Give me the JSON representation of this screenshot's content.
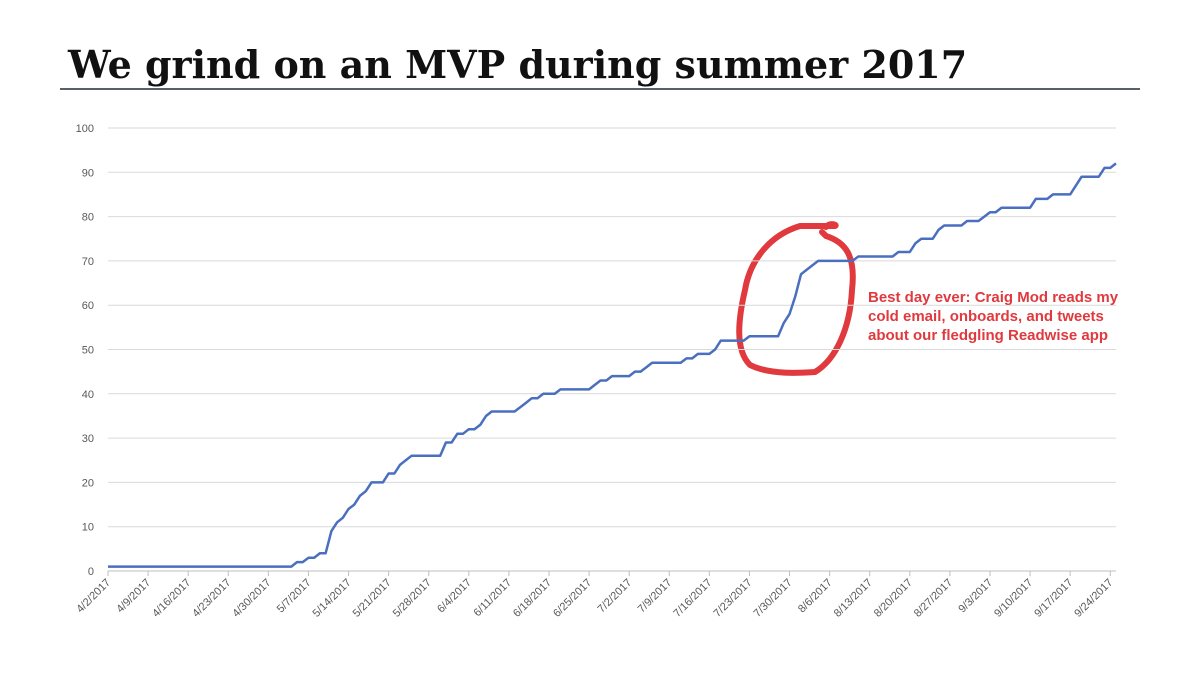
{
  "chart_data": {
    "type": "line",
    "title": "We grind on an MVP during summer 2017",
    "annotation": [
      "Best day ever: Craig Mod reads my",
      "cold email, onboards, and tweets",
      "about our fledgling Readwise app"
    ],
    "annotation_color": "#e0393e",
    "x": [
      "4/2/2017",
      "5/4/2017",
      "5/5/2017",
      "5/6/2017",
      "5/7/2017",
      "5/8/2017",
      "5/9/2017",
      "5/10/2017",
      "5/11/2017",
      "5/12/2017",
      "5/13/2017",
      "5/14/2017",
      "5/15/2017",
      "5/16/2017",
      "5/17/2017",
      "5/18/2017",
      "5/20/2017",
      "5/21/2017",
      "5/22/2017",
      "5/23/2017",
      "5/24/2017",
      "5/25/2017",
      "5/30/2017",
      "5/31/2017",
      "6/1/2017",
      "6/2/2017",
      "6/3/2017",
      "6/4/2017",
      "6/5/2017",
      "6/6/2017",
      "6/7/2017",
      "6/8/2017",
      "6/12/2017",
      "6/13/2017",
      "6/14/2017",
      "6/15/2017",
      "6/16/2017",
      "6/17/2017",
      "6/19/2017",
      "6/20/2017",
      "6/25/2017",
      "6/26/2017",
      "6/27/2017",
      "6/28/2017",
      "6/29/2017",
      "7/2/2017",
      "7/3/2017",
      "7/4/2017",
      "7/5/2017",
      "7/6/2017",
      "7/11/2017",
      "7/12/2017",
      "7/13/2017",
      "7/14/2017",
      "7/16/2017",
      "7/17/2017",
      "7/18/2017",
      "7/22/2017",
      "7/23/2017",
      "7/28/2017",
      "7/29/2017",
      "7/30/2017",
      "7/31/2017",
      "8/1/2017",
      "8/2/2017",
      "8/3/2017",
      "8/4/2017",
      "8/10/2017",
      "8/11/2017",
      "8/17/2017",
      "8/18/2017",
      "8/20/2017",
      "8/21/2017",
      "8/22/2017",
      "8/24/2017",
      "8/25/2017",
      "8/26/2017",
      "8/29/2017",
      "8/30/2017",
      "9/1/2017",
      "9/2/2017",
      "9/3/2017",
      "9/4/2017",
      "9/5/2017",
      "9/10/2017",
      "9/11/2017",
      "9/13/2017",
      "9/14/2017",
      "9/17/2017",
      "9/18/2017",
      "9/19/2017",
      "9/22/2017",
      "9/23/2017",
      "9/24/2017",
      "9/25/2017"
    ],
    "values": [
      1,
      1,
      2,
      2,
      3,
      3,
      4,
      4,
      9,
      11,
      12,
      14,
      15,
      17,
      18,
      20,
      20,
      22,
      22,
      24,
      25,
      26,
      26,
      29,
      29,
      31,
      31,
      32,
      32,
      33,
      35,
      36,
      36,
      37,
      38,
      39,
      39,
      40,
      40,
      41,
      41,
      42,
      43,
      43,
      44,
      44,
      45,
      45,
      46,
      47,
      47,
      48,
      48,
      49,
      49,
      50,
      52,
      52,
      53,
      53,
      56,
      58,
      62,
      67,
      68,
      69,
      70,
      70,
      71,
      71,
      72,
      72,
      74,
      75,
      75,
      77,
      78,
      78,
      79,
      79,
      80,
      81,
      81,
      82,
      82,
      84,
      84,
      85,
      85,
      87,
      89,
      89,
      91,
      91,
      92
    ],
    "color": "#4a6fbf",
    "xlim": [
      "4/2/2017",
      "9/25/2017"
    ],
    "xticks": [
      "4/2/2017",
      "4/9/2017",
      "4/16/2017",
      "4/23/2017",
      "4/30/2017",
      "5/7/2017",
      "5/14/2017",
      "5/21/2017",
      "5/28/2017",
      "6/4/2017",
      "6/11/2017",
      "6/18/2017",
      "6/25/2017",
      "7/2/2017",
      "7/9/2017",
      "7/16/2017",
      "7/23/2017",
      "7/30/2017",
      "8/6/2017",
      "8/13/2017",
      "8/20/2017",
      "8/27/2017",
      "9/3/2017",
      "9/10/2017",
      "9/17/2017",
      "9/24/2017"
    ],
    "ylim": [
      0,
      100
    ],
    "yticks": [
      0,
      10,
      20,
      30,
      40,
      50,
      60,
      70,
      80,
      90,
      100
    ],
    "grid": true
  }
}
